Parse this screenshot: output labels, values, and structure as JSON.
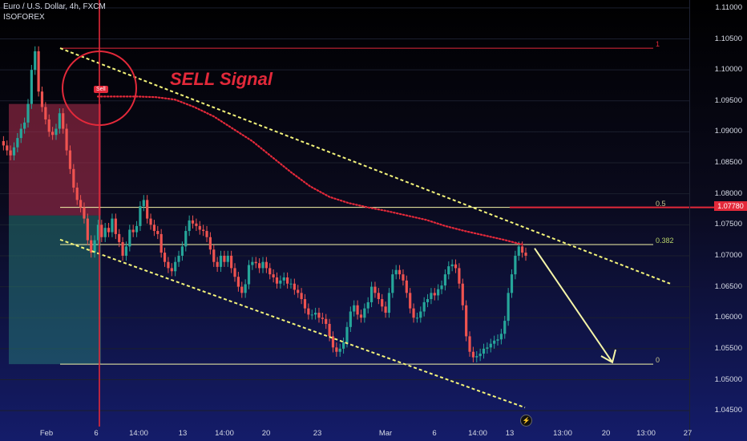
{
  "header": {
    "title": "Euro / U.S. Dollar, 4h, FXCM",
    "author": "ISOFOREX"
  },
  "annotations": {
    "sell_signal": "SELL Signal",
    "sell_badge": "Sell",
    "current_price": "1.07780"
  },
  "colors": {
    "bull": "#26a69a",
    "bear": "#ef5350",
    "accent_red": "#e3293a",
    "fib_line": "#f5f5a8",
    "trend": "#f4f47a"
  },
  "chart_data": {
    "type": "candlestick",
    "symbol": "EURUSD",
    "timeframe": "4h",
    "y_ticks": [
      "1.11000",
      "1.10500",
      "1.10000",
      "1.09500",
      "1.09000",
      "1.08500",
      "1.08000",
      "1.07500",
      "1.07000",
      "1.06500",
      "1.06000",
      "1.05500",
      "1.05000",
      "1.04500"
    ],
    "x_ticks": [
      "Feb",
      "6",
      "14:00",
      "13",
      "14:00",
      "20",
      "23",
      "Mar",
      "6",
      "14:00",
      "13",
      "13:00",
      "20",
      "13:00",
      "27"
    ],
    "ylim": [
      1.0435,
      1.1115
    ],
    "fib_levels": [
      {
        "label": "1",
        "price": 1.1035
      },
      {
        "label": "0.5",
        "price": 1.0778
      },
      {
        "label": "0.382",
        "price": 1.0718
      },
      {
        "label": "0",
        "price": 1.0525
      }
    ],
    "candle_points": [
      1.0885,
      1.0878,
      1.087,
      1.0862,
      1.0875,
      1.089,
      1.0905,
      1.0915,
      1.0945,
      1.1,
      1.103,
      1.0965,
      1.094,
      1.092,
      1.09,
      1.0895,
      1.0905,
      1.093,
      1.0905,
      1.087,
      1.084,
      1.081,
      1.079,
      1.0778,
      1.076,
      1.0725,
      1.0705,
      1.0725,
      1.075,
      1.073,
      1.0745,
      1.0738,
      1.076,
      1.0735,
      1.0722,
      1.07,
      1.0715,
      1.0742,
      1.0738,
      1.0748,
      1.078,
      1.079,
      1.076,
      1.075,
      1.074,
      1.0735,
      1.0705,
      1.069,
      1.068,
      1.0675,
      1.069,
      1.07,
      1.0715,
      1.074,
      1.0757,
      1.0752,
      1.0748,
      1.0742,
      1.074,
      1.073,
      1.071,
      1.069,
      1.0682,
      1.07,
      1.069,
      1.07,
      1.068,
      1.0666,
      1.065,
      1.064,
      1.0654,
      1.0685,
      1.069,
      1.0688,
      1.068,
      1.069,
      1.068,
      1.067,
      1.0665,
      1.0655,
      1.066,
      1.0665,
      1.0655,
      1.0655,
      1.0645,
      1.064,
      1.063,
      1.0615,
      1.0605,
      1.0605,
      1.0608,
      1.06,
      1.0598,
      1.059,
      1.057,
      1.0552,
      1.0545,
      1.055,
      1.056,
      1.0585,
      1.061,
      1.062,
      1.0605,
      1.06,
      1.0615,
      1.0625,
      1.065,
      1.064,
      1.063,
      1.0618,
      1.0608,
      1.064,
      1.067,
      1.0677,
      1.067,
      1.066,
      1.064,
      1.0615,
      1.06,
      1.06,
      1.061,
      1.0625,
      1.063,
      1.064,
      1.0636,
      1.0646,
      1.0652,
      1.067,
      1.0683,
      1.0686,
      1.068,
      1.0655,
      1.062,
      1.057,
      1.0545,
      1.0536,
      1.0538,
      1.0542,
      1.055,
      1.0552,
      1.0558,
      1.0563,
      1.0565,
      1.0574,
      1.0595,
      1.064,
      1.067,
      1.07,
      1.0715,
      1.0705,
      1.07
    ],
    "sell_signal_line": [
      1.0957,
      1.0957,
      1.0957,
      1.0956,
      1.0952,
      1.094,
      1.0925,
      1.0905,
      1.0885,
      1.086,
      1.0835,
      1.0812,
      1.0795,
      1.0785,
      1.0778,
      1.0772,
      1.0765,
      1.0758,
      1.0748,
      1.074,
      1.0733,
      1.0726,
      1.0718
    ],
    "channel_upper": [
      [
        1.1035
      ],
      [
        1.0655
      ]
    ],
    "channel_lower": [
      [
        1.0726
      ],
      [
        1.0455
      ]
    ],
    "projection": [
      [
        1.0712
      ],
      [
        1.0528
      ]
    ]
  }
}
